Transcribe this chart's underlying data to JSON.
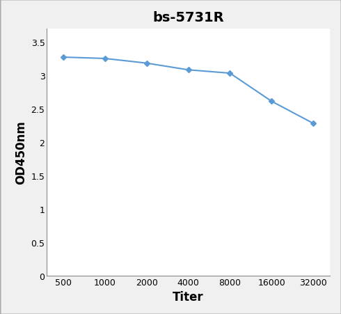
{
  "title": "bs-5731R",
  "xlabel": "Titer",
  "ylabel": "OD450nm",
  "x_values": [
    500,
    1000,
    2000,
    4000,
    8000,
    16000,
    32000
  ],
  "y_values": [
    3.27,
    3.25,
    3.18,
    3.08,
    3.03,
    2.61,
    2.28
  ],
  "x_tick_labels": [
    "500",
    "1000",
    "2000",
    "4000",
    "8000",
    "16000",
    "32000"
  ],
  "ylim": [
    0,
    3.7
  ],
  "yticks": [
    0,
    0.5,
    1,
    1.5,
    2,
    2.5,
    3,
    3.5
  ],
  "line_color": "#5B9BD5",
  "marker": "D",
  "marker_size": 4,
  "line_width": 1.5,
  "title_fontsize": 14,
  "axis_label_fontsize": 12,
  "tick_fontsize": 9,
  "background_color": "#ffffff",
  "figure_bg": "#f0f0f0",
  "border_color": "#888888"
}
